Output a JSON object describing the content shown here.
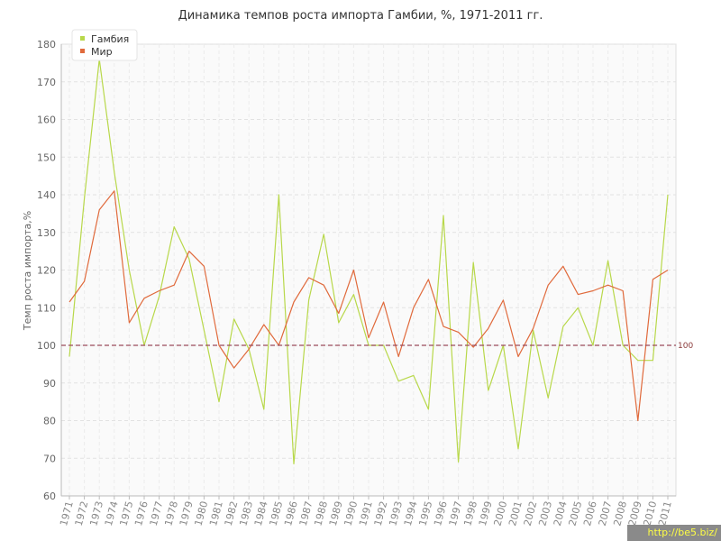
{
  "chart_data": {
    "type": "line",
    "title": "Динамика темпов роста импорта Гамбии, %, 1971-2011 гг.",
    "xlabel": "",
    "ylabel": "Темп роста импорта,%",
    "ylim": [
      60,
      180
    ],
    "yticks": [
      60,
      70,
      80,
      90,
      100,
      110,
      120,
      130,
      140,
      150,
      160,
      170,
      180
    ],
    "categories": [
      "1971",
      "1972",
      "1973",
      "1974",
      "1975",
      "1976",
      "1977",
      "1978",
      "1979",
      "1980",
      "1981",
      "1982",
      "1983",
      "1984",
      "1985",
      "1986",
      "1987",
      "1988",
      "1989",
      "1990",
      "1991",
      "1992",
      "1993",
      "1994",
      "1995",
      "1996",
      "1997",
      "1998",
      "1999",
      "2000",
      "2001",
      "2002",
      "2003",
      "2004",
      "2005",
      "2006",
      "2007",
      "2008",
      "2009",
      "2010",
      "2011"
    ],
    "series": [
      {
        "name": "Гамбия",
        "color": "#b8d84a",
        "values": [
          97,
          139,
          176,
          146,
          120,
          100,
          113,
          131.5,
          123,
          104,
          85,
          107,
          99,
          83,
          140,
          68.5,
          112,
          129.5,
          106,
          113.5,
          100,
          100,
          90.5,
          92,
          83,
          134.5,
          69,
          122,
          88,
          100,
          72.5,
          104,
          86,
          105,
          110,
          100,
          122.5,
          100,
          96,
          96,
          140
        ]
      },
      {
        "name": "Мир",
        "color": "#e06a3c",
        "values": [
          111.5,
          117,
          136,
          141,
          106,
          112.5,
          114.5,
          116,
          125,
          121,
          100,
          94,
          99,
          105.5,
          100,
          111.5,
          118,
          116,
          108.5,
          120,
          102,
          111.5,
          97,
          110,
          117.5,
          105,
          103.5,
          99.5,
          104.5,
          112,
          97,
          104.5,
          116,
          121,
          113.5,
          114.5,
          116,
          114.5,
          80,
          117.5,
          120
        ]
      }
    ],
    "reference_line": {
      "value": 100,
      "label": "100",
      "color": "#9a4a5a"
    },
    "grid": true,
    "legend": "top-left"
  }
}
